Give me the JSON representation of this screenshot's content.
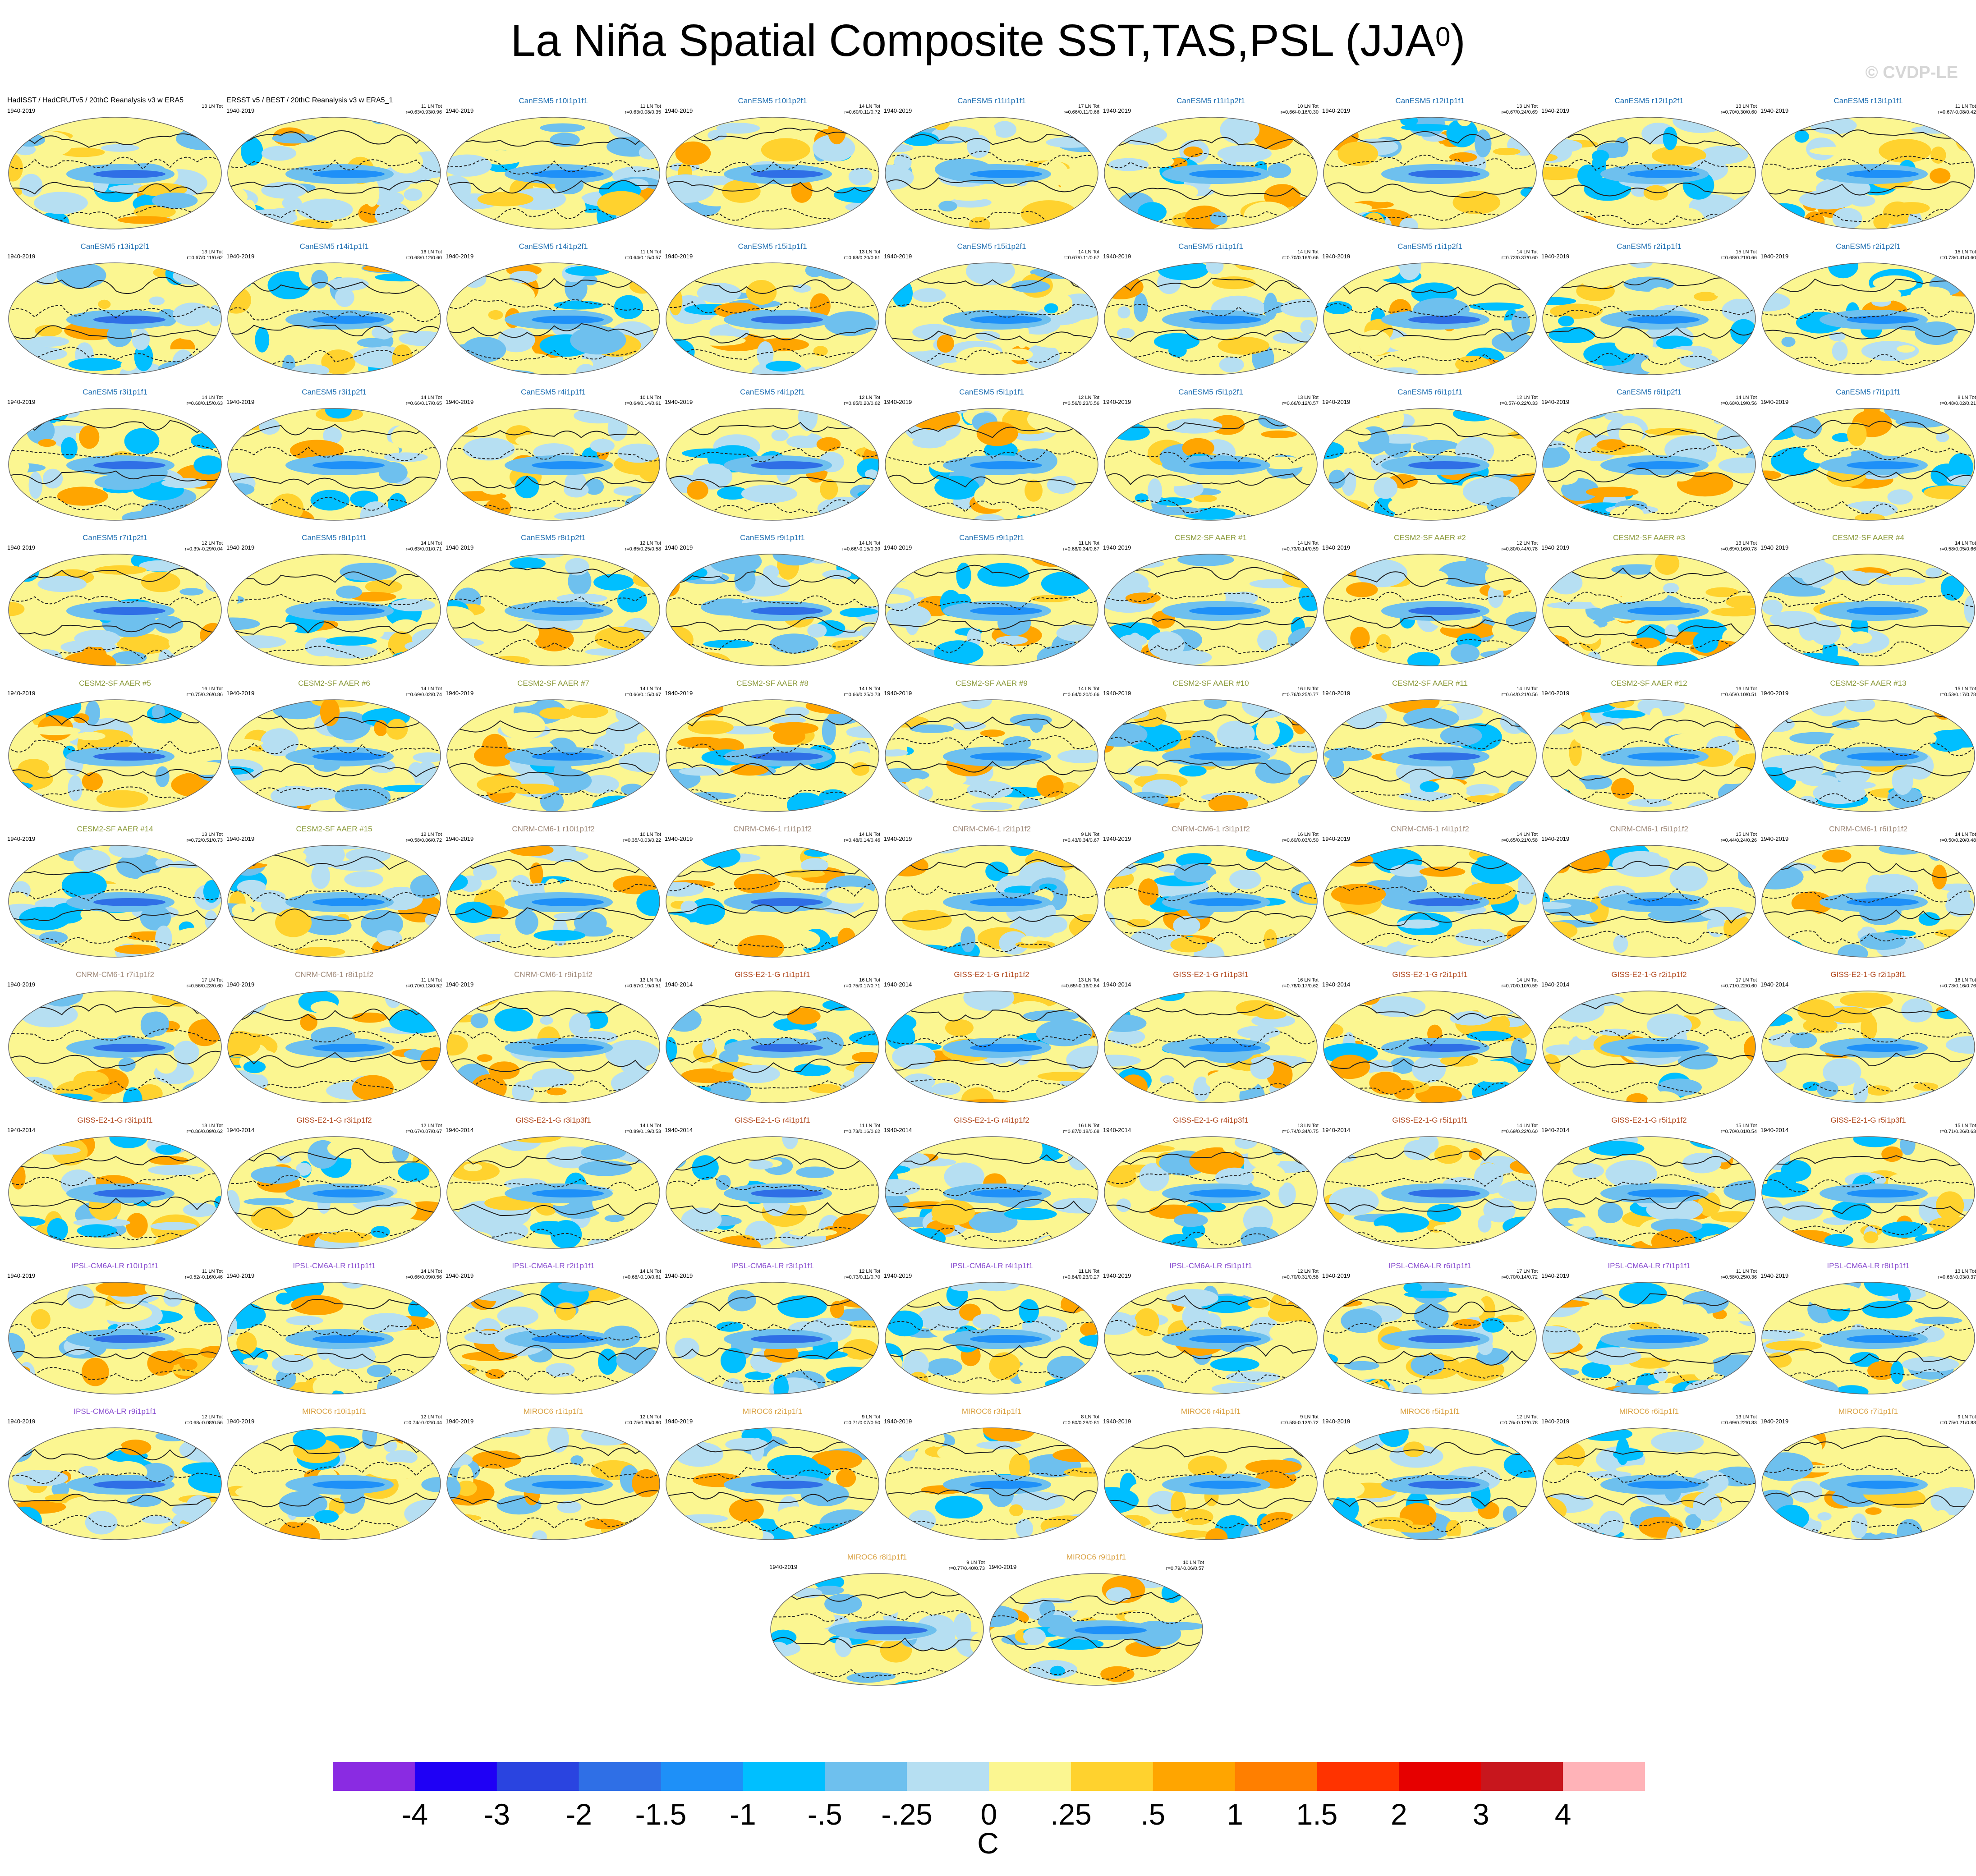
{
  "title": {
    "main": "La Niña Spatial Composite SST,TAS,PSL (JJA",
    "sup": "0",
    "close": ")"
  },
  "watermark": "© CVDP-LE",
  "colors": {
    "CanESM5": "#1f6fb2",
    "CESM2-SF AAER": "#8b9a3a",
    "CNRM-CM6-1": "#a08a7a",
    "GISS-E2-1-G": "#b0451a",
    "IPSL-CM6A-LR": "#8a4fd0",
    "MIROC6": "#d9a040",
    "obs": "#000000"
  },
  "panels": [
    {
      "title": "HadISST / HadCRUTv5 / 20thC Reanalysis v3 w ERA5",
      "years": "1940-2019",
      "count": "13 LN Tot",
      "stats": "",
      "group": "obs"
    },
    {
      "title": "ERSST v5 / BEST / 20thC Reanalysis v3 w ERA5_1",
      "years": "1940-2019",
      "count": "11 LN Tot",
      "stats": "r=0.63/0.93/0.96",
      "group": "obs"
    },
    {
      "title": "CanESM5 r10i1p1f1",
      "years": "1940-2019",
      "count": "11 LN Tot",
      "stats": "r=0.63/0.08/0.35",
      "group": "CanESM5"
    },
    {
      "title": "CanESM5 r10i1p2f1",
      "years": "1940-2019",
      "count": "14 LN Tot",
      "stats": "r=0.60/0.11/0.72",
      "group": "CanESM5"
    },
    {
      "title": "CanESM5 r11i1p1f1",
      "years": "1940-2019",
      "count": "17 LN Tot",
      "stats": "r=0.66/0.11/0.66",
      "group": "CanESM5"
    },
    {
      "title": "CanESM5 r11i1p2f1",
      "years": "1940-2019",
      "count": "10 LN Tot",
      "stats": "r=0.66/-0.16/0.30",
      "group": "CanESM5"
    },
    {
      "title": "CanESM5 r12i1p1f1",
      "years": "1940-2019",
      "count": "13 LN Tot",
      "stats": "r=0.67/0.24/0.69",
      "group": "CanESM5"
    },
    {
      "title": "CanESM5 r12i1p2f1",
      "years": "1940-2019",
      "count": "13 LN Tot",
      "stats": "r=0.70/0.30/0.60",
      "group": "CanESM5"
    },
    {
      "title": "CanESM5 r13i1p1f1",
      "years": "1940-2019",
      "count": "11 LN Tot",
      "stats": "r=0.67/-0.08/0.42",
      "group": "CanESM5"
    },
    {
      "title": "CanESM5 r13i1p2f1",
      "years": "1940-2019",
      "count": "13 LN Tot",
      "stats": "r=0.67/0.11/0.62",
      "group": "CanESM5"
    },
    {
      "title": "CanESM5 r14i1p1f1",
      "years": "1940-2019",
      "count": "16 LN Tot",
      "stats": "r=0.68/0.12/0.60",
      "group": "CanESM5"
    },
    {
      "title": "CanESM5 r14i1p2f1",
      "years": "1940-2019",
      "count": "11 LN Tot",
      "stats": "r=0.64/0.15/0.57",
      "group": "CanESM5"
    },
    {
      "title": "CanESM5 r15i1p1f1",
      "years": "1940-2019",
      "count": "13 LN Tot",
      "stats": "r=0.68/0.20/0.61",
      "group": "CanESM5"
    },
    {
      "title": "CanESM5 r15i1p2f1",
      "years": "1940-2019",
      "count": "14 LN Tot",
      "stats": "r=0.67/0.11/0.67",
      "group": "CanESM5"
    },
    {
      "title": "CanESM5 r1i1p1f1",
      "years": "1940-2019",
      "count": "14 LN Tot",
      "stats": "r=0.70/0.16/0.66",
      "group": "CanESM5"
    },
    {
      "title": "CanESM5 r1i1p2f1",
      "years": "1940-2019",
      "count": "14 LN Tot",
      "stats": "r=0.72/0.37/0.60",
      "group": "CanESM5"
    },
    {
      "title": "CanESM5 r2i1p1f1",
      "years": "1940-2019",
      "count": "15 LN Tot",
      "stats": "r=0.68/0.21/0.66",
      "group": "CanESM5"
    },
    {
      "title": "CanESM5 r2i1p2f1",
      "years": "1940-2019",
      "count": "15 LN Tot",
      "stats": "r=0.73/0.41/0.60",
      "group": "CanESM5"
    },
    {
      "title": "CanESM5 r3i1p1f1",
      "years": "1940-2019",
      "count": "14 LN Tot",
      "stats": "r=0.68/0.15/0.63",
      "group": "CanESM5"
    },
    {
      "title": "CanESM5 r3i1p2f1",
      "years": "1940-2019",
      "count": "14 LN Tot",
      "stats": "r=0.66/0.17/0.65",
      "group": "CanESM5"
    },
    {
      "title": "CanESM5 r4i1p1f1",
      "years": "1940-2019",
      "count": "10 LN Tot",
      "stats": "r=0.64/0.14/0.61",
      "group": "CanESM5"
    },
    {
      "title": "CanESM5 r4i1p2f1",
      "years": "1940-2019",
      "count": "12 LN Tot",
      "stats": "r=0.65/0.20/0.62",
      "group": "CanESM5"
    },
    {
      "title": "CanESM5 r5i1p1f1",
      "years": "1940-2019",
      "count": "12 LN Tot",
      "stats": "r=0.56/0.23/0.56",
      "group": "CanESM5"
    },
    {
      "title": "CanESM5 r5i1p2f1",
      "years": "1940-2019",
      "count": "13 LN Tot",
      "stats": "r=0.66/0.12/0.57",
      "group": "CanESM5"
    },
    {
      "title": "CanESM5 r6i1p1f1",
      "years": "1940-2019",
      "count": "12 LN Tot",
      "stats": "r=0.57/-0.22/0.33",
      "group": "CanESM5"
    },
    {
      "title": "CanESM5 r6i1p2f1",
      "years": "1940-2019",
      "count": "14 LN Tot",
      "stats": "r=0.68/0.19/0.56",
      "group": "CanESM5"
    },
    {
      "title": "CanESM5 r7i1p1f1",
      "years": "1940-2019",
      "count": "8 LN Tot",
      "stats": "r=0.48/0.02/0.21",
      "group": "CanESM5"
    },
    {
      "title": "CanESM5 r7i1p2f1",
      "years": "1940-2019",
      "count": "12 LN Tot",
      "stats": "r=0.39/-0.29/0.04",
      "group": "CanESM5"
    },
    {
      "title": "CanESM5 r8i1p1f1",
      "years": "1940-2019",
      "count": "14 LN Tot",
      "stats": "r=0.63/0.01/0.71",
      "group": "CanESM5"
    },
    {
      "title": "CanESM5 r8i1p2f1",
      "years": "1940-2019",
      "count": "12 LN Tot",
      "stats": "r=0.65/0.25/0.58",
      "group": "CanESM5"
    },
    {
      "title": "CanESM5 r9i1p1f1",
      "years": "1940-2019",
      "count": "14 LN Tot",
      "stats": "r=0.66/-0.15/0.39",
      "group": "CanESM5"
    },
    {
      "title": "CanESM5 r9i1p2f1",
      "years": "1940-2019",
      "count": "11 LN Tot",
      "stats": "r=0.68/0.34/0.67",
      "group": "CanESM5"
    },
    {
      "title": "CESM2-SF AAER #1",
      "years": "1940-2019",
      "count": "14 LN Tot",
      "stats": "r=0.73/0.14/0.59",
      "group": "CESM2-SF AAER"
    },
    {
      "title": "CESM2-SF AAER #2",
      "years": "1940-2019",
      "count": "12 LN Tot",
      "stats": "r=0.80/0.44/0.78",
      "group": "CESM2-SF AAER"
    },
    {
      "title": "CESM2-SF AAER #3",
      "years": "1940-2019",
      "count": "13 LN Tot",
      "stats": "r=0.69/0.16/0.78",
      "group": "CESM2-SF AAER"
    },
    {
      "title": "CESM2-SF AAER #4",
      "years": "1940-2019",
      "count": "14 LN Tot",
      "stats": "r=0.58/0.05/0.66",
      "group": "CESM2-SF AAER"
    },
    {
      "title": "CESM2-SF AAER #5",
      "years": "1940-2019",
      "count": "16 LN Tot",
      "stats": "r=0.75/0.26/0.86",
      "group": "CESM2-SF AAER"
    },
    {
      "title": "CESM2-SF AAER #6",
      "years": "1940-2019",
      "count": "14 LN Tot",
      "stats": "r=0.69/0.02/0.74",
      "group": "CESM2-SF AAER"
    },
    {
      "title": "CESM2-SF AAER #7",
      "years": "1940-2019",
      "count": "14 LN Tot",
      "stats": "r=0.66/0.15/0.67",
      "group": "CESM2-SF AAER"
    },
    {
      "title": "CESM2-SF AAER #8",
      "years": "1940-2019",
      "count": "14 LN Tot",
      "stats": "r=0.66/0.25/0.73",
      "group": "CESM2-SF AAER"
    },
    {
      "title": "CESM2-SF AAER #9",
      "years": "1940-2019",
      "count": "14 LN Tot",
      "stats": "r=0.64/0.20/0.66",
      "group": "CESM2-SF AAER"
    },
    {
      "title": "CESM2-SF AAER #10",
      "years": "1940-2019",
      "count": "16 LN Tot",
      "stats": "r=0.76/0.25/0.77",
      "group": "CESM2-SF AAER"
    },
    {
      "title": "CESM2-SF AAER #11",
      "years": "1940-2019",
      "count": "14 LN Tot",
      "stats": "r=0.64/0.21/0.56",
      "group": "CESM2-SF AAER"
    },
    {
      "title": "CESM2-SF AAER #12",
      "years": "1940-2019",
      "count": "16 LN Tot",
      "stats": "r=0.65/0.10/0.51",
      "group": "CESM2-SF AAER"
    },
    {
      "title": "CESM2-SF AAER #13",
      "years": "1940-2019",
      "count": "15 LN Tot",
      "stats": "r=0.53/0.17/0.78",
      "group": "CESM2-SF AAER"
    },
    {
      "title": "CESM2-SF AAER #14",
      "years": "1940-2019",
      "count": "13 LN Tot",
      "stats": "r=0.72/0.51/0.73",
      "group": "CESM2-SF AAER"
    },
    {
      "title": "CESM2-SF AAER #15",
      "years": "1940-2019",
      "count": "12 LN Tot",
      "stats": "r=0.58/0.06/0.72",
      "group": "CESM2-SF AAER"
    },
    {
      "title": "CNRM-CM6-1 r10i1p1f2",
      "years": "1940-2019",
      "count": "10 LN Tot",
      "stats": "r=0.35/-0.03/0.22",
      "group": "CNRM-CM6-1"
    },
    {
      "title": "CNRM-CM6-1 r1i1p1f2",
      "years": "1940-2019",
      "count": "14 LN Tot",
      "stats": "r=0.48/0.14/0.46",
      "group": "CNRM-CM6-1"
    },
    {
      "title": "CNRM-CM6-1 r2i1p1f2",
      "years": "1940-2019",
      "count": "9 LN Tot",
      "stats": "r=0.43/0.34/0.67",
      "group": "CNRM-CM6-1"
    },
    {
      "title": "CNRM-CM6-1 r3i1p1f2",
      "years": "1940-2019",
      "count": "16 LN Tot",
      "stats": "r=0.60/0.03/0.50",
      "group": "CNRM-CM6-1"
    },
    {
      "title": "CNRM-CM6-1 r4i1p1f2",
      "years": "1940-2019",
      "count": "14 LN Tot",
      "stats": "r=0.65/0.21/0.58",
      "group": "CNRM-CM6-1"
    },
    {
      "title": "CNRM-CM6-1 r5i1p1f2",
      "years": "1940-2019",
      "count": "15 LN Tot",
      "stats": "r=0.44/0.24/0.26",
      "group": "CNRM-CM6-1"
    },
    {
      "title": "CNRM-CM6-1 r6i1p1f2",
      "years": "1940-2019",
      "count": "14 LN Tot",
      "stats": "r=0.50/0.20/0.48",
      "group": "CNRM-CM6-1"
    },
    {
      "title": "CNRM-CM6-1 r7i1p1f2",
      "years": "1940-2019",
      "count": "17 LN Tot",
      "stats": "r=0.56/0.23/0.60",
      "group": "CNRM-CM6-1"
    },
    {
      "title": "CNRM-CM6-1 r8i1p1f2",
      "years": "1940-2019",
      "count": "11 LN Tot",
      "stats": "r=0.70/0.13/0.52",
      "group": "CNRM-CM6-1"
    },
    {
      "title": "CNRM-CM6-1 r9i1p1f2",
      "years": "1940-2019",
      "count": "13 LN Tot",
      "stats": "r=0.57/0.19/0.51",
      "group": "CNRM-CM6-1"
    },
    {
      "title": "GISS-E2-1-G r1i1p1f1",
      "years": "1940-2014",
      "count": "16 LN Tot",
      "stats": "r=0.75/0.17/0.71",
      "group": "GISS-E2-1-G"
    },
    {
      "title": "GISS-E2-1-G r1i1p1f2",
      "years": "1940-2014",
      "count": "13 LN Tot",
      "stats": "r=0.65/-0.16/0.64",
      "group": "GISS-E2-1-G"
    },
    {
      "title": "GISS-E2-1-G r1i1p3f1",
      "years": "1940-2014",
      "count": "16 LN Tot",
      "stats": "r=0.78/0.17/0.62",
      "group": "GISS-E2-1-G"
    },
    {
      "title": "GISS-E2-1-G r2i1p1f1",
      "years": "1940-2014",
      "count": "14 LN Tot",
      "stats": "r=0.70/0.10/0.59",
      "group": "GISS-E2-1-G"
    },
    {
      "title": "GISS-E2-1-G r2i1p1f2",
      "years": "1940-2014",
      "count": "17 LN Tot",
      "stats": "r=0.71/0.22/0.60",
      "group": "GISS-E2-1-G"
    },
    {
      "title": "GISS-E2-1-G r2i1p3f1",
      "years": "1940-2014",
      "count": "16 LN Tot",
      "stats": "r=0.73/0.16/0.76",
      "group": "GISS-E2-1-G"
    },
    {
      "title": "GISS-E2-1-G r3i1p1f1",
      "years": "1940-2014",
      "count": "13 LN Tot",
      "stats": "r=0.86/0.09/0.62",
      "group": "GISS-E2-1-G"
    },
    {
      "title": "GISS-E2-1-G r3i1p1f2",
      "years": "1940-2014",
      "count": "12 LN Tot",
      "stats": "r=0.67/0.07/0.67",
      "group": "GISS-E2-1-G"
    },
    {
      "title": "GISS-E2-1-G r3i1p3f1",
      "years": "1940-2014",
      "count": "14 LN Tot",
      "stats": "r=0.89/0.19/0.53",
      "group": "GISS-E2-1-G"
    },
    {
      "title": "GISS-E2-1-G r4i1p1f1",
      "years": "1940-2014",
      "count": "11 LN Tot",
      "stats": "r=0.73/0.16/0.62",
      "group": "GISS-E2-1-G"
    },
    {
      "title": "GISS-E2-1-G r4i1p1f2",
      "years": "1940-2014",
      "count": "16 LN Tot",
      "stats": "r=0.87/0.18/0.68",
      "group": "GISS-E2-1-G"
    },
    {
      "title": "GISS-E2-1-G r4i1p3f1",
      "years": "1940-2014",
      "count": "13 LN Tot",
      "stats": "r=0.74/0.34/0.75",
      "group": "GISS-E2-1-G"
    },
    {
      "title": "GISS-E2-1-G r5i1p1f1",
      "years": "1940-2014",
      "count": "14 LN Tot",
      "stats": "r=0.69/0.22/0.60",
      "group": "GISS-E2-1-G"
    },
    {
      "title": "GISS-E2-1-G r5i1p1f2",
      "years": "1940-2014",
      "count": "15 LN Tot",
      "stats": "r=0.70/0.01/0.54",
      "group": "GISS-E2-1-G"
    },
    {
      "title": "GISS-E2-1-G r5i1p3f1",
      "years": "1940-2014",
      "count": "15 LN Tot",
      "stats": "r=0.71/0.26/0.63",
      "group": "GISS-E2-1-G"
    },
    {
      "title": "IPSL-CM6A-LR r10i1p1f1",
      "years": "1940-2019",
      "count": "11 LN Tot",
      "stats": "r=0.52/-0.16/0.46",
      "group": "IPSL-CM6A-LR"
    },
    {
      "title": "IPSL-CM6A-LR r1i1p1f1",
      "years": "1940-2019",
      "count": "14 LN Tot",
      "stats": "r=0.66/0.09/0.56",
      "group": "IPSL-CM6A-LR"
    },
    {
      "title": "IPSL-CM6A-LR r2i1p1f1",
      "years": "1940-2019",
      "count": "14 LN Tot",
      "stats": "r=0.68/-0.10/0.61",
      "group": "IPSL-CM6A-LR"
    },
    {
      "title": "IPSL-CM6A-LR r3i1p1f1",
      "years": "1940-2019",
      "count": "12 LN Tot",
      "stats": "r=0.73/0.11/0.70",
      "group": "IPSL-CM6A-LR"
    },
    {
      "title": "IPSL-CM6A-LR r4i1p1f1",
      "years": "1940-2019",
      "count": "11 LN Tot",
      "stats": "r=0.84/0.23/0.27",
      "group": "IPSL-CM6A-LR"
    },
    {
      "title": "IPSL-CM6A-LR r5i1p1f1",
      "years": "1940-2019",
      "count": "12 LN Tot",
      "stats": "r=0.70/0.31/0.58",
      "group": "IPSL-CM6A-LR"
    },
    {
      "title": "IPSL-CM6A-LR r6i1p1f1",
      "years": "1940-2019",
      "count": "17 LN Tot",
      "stats": "r=0.70/0.14/0.72",
      "group": "IPSL-CM6A-LR"
    },
    {
      "title": "IPSL-CM6A-LR r7i1p1f1",
      "years": "1940-2019",
      "count": "11 LN Tot",
      "stats": "r=0.58/0.25/0.36",
      "group": "IPSL-CM6A-LR"
    },
    {
      "title": "IPSL-CM6A-LR r8i1p1f1",
      "years": "1940-2019",
      "count": "13 LN Tot",
      "stats": "r=0.65/-0.03/0.37",
      "group": "IPSL-CM6A-LR"
    },
    {
      "title": "IPSL-CM6A-LR r9i1p1f1",
      "years": "1940-2019",
      "count": "12 LN Tot",
      "stats": "r=0.68/-0.08/0.56",
      "group": "IPSL-CM6A-LR"
    },
    {
      "title": "MIROC6 r10i1p1f1",
      "years": "1940-2019",
      "count": "12 LN Tot",
      "stats": "r=0.74/-0.02/0.44",
      "group": "MIROC6"
    },
    {
      "title": "MIROC6 r1i1p1f1",
      "years": "1940-2019",
      "count": "12 LN Tot",
      "stats": "r=0.75/0.30/0.80",
      "group": "MIROC6"
    },
    {
      "title": "MIROC6 r2i1p1f1",
      "years": "1940-2019",
      "count": "9 LN Tot",
      "stats": "r=0.71/0.07/0.50",
      "group": "MIROC6"
    },
    {
      "title": "MIROC6 r3i1p1f1",
      "years": "1940-2019",
      "count": "8 LN Tot",
      "stats": "r=0.80/0.28/0.81",
      "group": "MIROC6"
    },
    {
      "title": "MIROC6 r4i1p1f1",
      "years": "1940-2019",
      "count": "9 LN Tot",
      "stats": "r=0.58/-0.13/0.72",
      "group": "MIROC6"
    },
    {
      "title": "MIROC6 r5i1p1f1",
      "years": "1940-2019",
      "count": "12 LN Tot",
      "stats": "r=0.76/-0.12/0.78",
      "group": "MIROC6"
    },
    {
      "title": "MIROC6 r6i1p1f1",
      "years": "1940-2019",
      "count": "13 LN Tot",
      "stats": "r=0.69/0.22/0.83",
      "group": "MIROC6"
    },
    {
      "title": "MIROC6 r7i1p1f1",
      "years": "1940-2019",
      "count": "9 LN Tot",
      "stats": "r=0.75/0.21/0.83",
      "group": "MIROC6"
    },
    {
      "title": "MIROC6 r8i1p1f1",
      "years": "1940-2019",
      "count": "9 LN Tot",
      "stats": "r=0.77/0.40/0.73",
      "group": "MIROC6"
    },
    {
      "title": "MIROC6 r9i1p1f1",
      "years": "1940-2019",
      "count": "10 LN Tot",
      "stats": "r=0.79/-0.06/0.57",
      "group": "MIROC6"
    }
  ],
  "colorbar": {
    "colors": [
      "#8a2be2",
      "#1f00f5",
      "#2a44e0",
      "#2f6fe6",
      "#1e90f8",
      "#00bfff",
      "#6ec0ee",
      "#b6dff2",
      "#fbf691",
      "#ffd22e",
      "#ffa500",
      "#ff7f00",
      "#ff3300",
      "#e60000",
      "#c8161d",
      "#ffb3b8"
    ],
    "labels": [
      "-4",
      "-3",
      "-2",
      "-1.5",
      "-1",
      "-.5",
      "-.25",
      "0",
      ".25",
      ".5",
      "1",
      "1.5",
      "2",
      "3",
      "4"
    ],
    "units": "C"
  }
}
